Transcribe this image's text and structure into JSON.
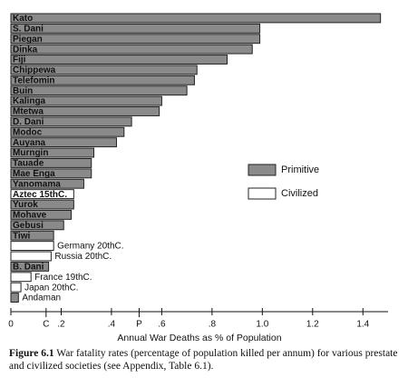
{
  "chart_data": {
    "type": "hbar",
    "categories": [
      "Kato",
      "S. Dani",
      "Piegan",
      "Dinka",
      "Fiji",
      "Chippewa",
      "Telefomin",
      "Buin",
      "Kalinga",
      "Mtetwa",
      "D. Dani",
      "Modoc",
      "Auyana",
      "Murngin",
      "Tauade",
      "Mae Enga",
      "Yanomama",
      "Aztec 15thC.",
      "Yurok",
      "Mohave",
      "Gebusi",
      "Tiwi",
      "Germany 20thC.",
      "Russia 20thC.",
      "B. Dani",
      "France 19thC.",
      "Japan 20thC.",
      "Andaman"
    ],
    "series": [
      {
        "name": "Primitive",
        "color": "#8a8a8a",
        "values": [
          1.47,
          0.99,
          0.99,
          0.96,
          0.86,
          0.74,
          0.73,
          0.7,
          0.6,
          0.59,
          0.48,
          0.45,
          0.42,
          0.33,
          0.32,
          0.32,
          0.29,
          null,
          0.25,
          0.24,
          0.21,
          0.17,
          null,
          null,
          0.15,
          null,
          null,
          0.03
        ]
      },
      {
        "name": "Civilized",
        "color": "#ffffff",
        "values": [
          null,
          null,
          null,
          null,
          null,
          null,
          null,
          null,
          null,
          null,
          null,
          null,
          null,
          null,
          null,
          null,
          null,
          0.25,
          null,
          null,
          null,
          null,
          0.17,
          0.16,
          null,
          0.08,
          0.04,
          null
        ]
      }
    ],
    "xlim": [
      0,
      1.5
    ],
    "xticks": [
      0,
      {
        "value": 0.2,
        "label": ".2"
      },
      {
        "value": 0.4,
        "label": ".4"
      },
      {
        "value": 0.6,
        "label": ".6"
      },
      {
        "value": 0.8,
        "label": ".8"
      },
      {
        "value": 1,
        "label": "1.0"
      },
      1.2,
      1.4
    ],
    "markers": [
      {
        "value": 0.14,
        "label": "C"
      },
      {
        "value": 0.51,
        "label": "P"
      }
    ],
    "xlabel": "Annual War Deaths as % of Population",
    "caption_label": "Figure 6.1",
    "caption": "War fatality rates (percentage of population killed per annum) for various prestate and civilized societies (see Appendix, Table 6.1)."
  }
}
